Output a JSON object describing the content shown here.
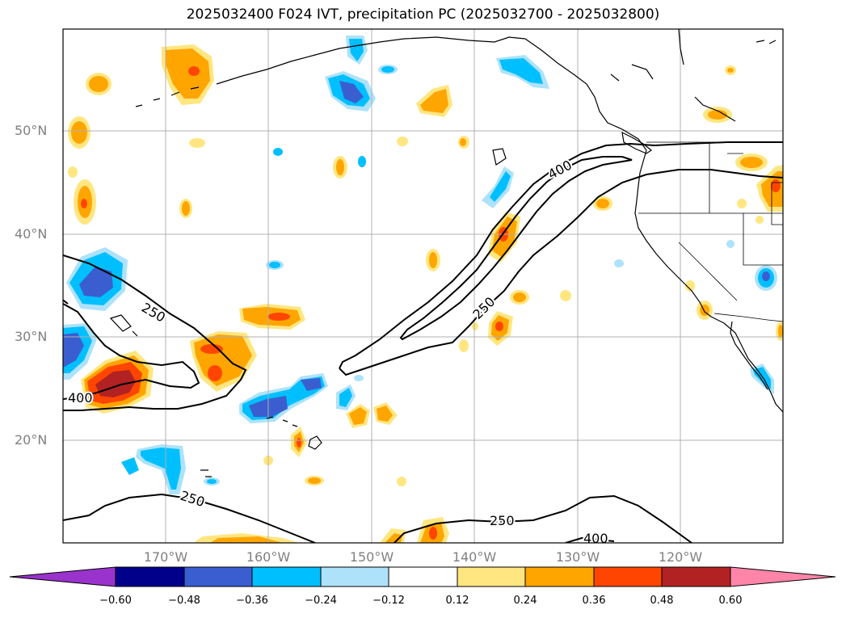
{
  "title": "2025032400 F024 IVT, precipitation PC (2025032700 - 2025032800)",
  "map": {
    "lat_labels": [
      "50°N",
      "40°N",
      "30°N",
      "20°N"
    ],
    "lon_labels": [
      "170°W",
      "160°W",
      "150°W",
      "140°W",
      "130°W",
      "120°W"
    ],
    "ivt_contours": {
      "levels": [
        250,
        400
      ],
      "labels": [
        {
          "text": "250",
          "name": "ivt-label-250-west"
        },
        {
          "text": "400",
          "name": "ivt-label-400-west"
        },
        {
          "text": "400",
          "name": "ivt-label-400-ar"
        },
        {
          "text": "250",
          "name": "ivt-label-250-ar"
        },
        {
          "text": "250",
          "name": "ivt-label-250-south"
        },
        {
          "text": "250",
          "name": "ivt-label-250-southeast"
        },
        {
          "text": "400",
          "name": "ivt-label-400-southeast"
        }
      ]
    }
  },
  "colorbar": {
    "ticks": [
      "−0.60",
      "−0.48",
      "−0.36",
      "−0.24",
      "−0.12",
      "0.12",
      "0.24",
      "0.36",
      "0.48",
      "0.60"
    ],
    "colors": [
      "#9933cc",
      "#00008b",
      "#3a5ed0",
      "#00bfff",
      "#ade2fa",
      "#ffffff",
      "#ffe680",
      "#ffa500",
      "#ff4500",
      "#b22222",
      "#ff85a8"
    ]
  },
  "shading_colors": {
    "neg_light": "#ade2fa",
    "neg_mid": "#00bfff",
    "neg_strong": "#3a5ed0",
    "pos_light": "#ffe680",
    "pos_mid": "#ffa500",
    "pos_strong": "#ff4500",
    "pos_max": "#b22222"
  }
}
